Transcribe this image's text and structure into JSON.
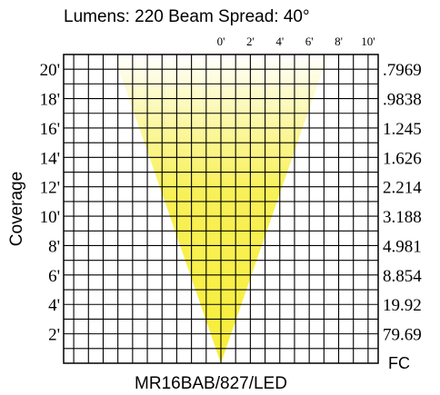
{
  "chart_data": {
    "type": "area",
    "title": "Lumens: 220  Beam Spread: 40°",
    "xlabel": "MR16BAB/827/LED",
    "ylabel": "Coverage",
    "fc_label": "FC",
    "top_ticks": [
      "0'",
      "2'",
      "4'",
      "6'",
      "8'",
      "10'"
    ],
    "y_ticks": [
      "20'",
      "18'",
      "16'",
      "14'",
      "12'",
      "10'",
      "8'",
      "6'",
      "4'",
      "2'"
    ],
    "y_values": [
      20,
      18,
      16,
      14,
      12,
      10,
      8,
      6,
      4,
      2
    ],
    "fc_values": [
      ".7969",
      ".9838",
      "1.245",
      "1.626",
      "2.214",
      "3.188",
      "4.981",
      "8.854",
      "19.92",
      "79.69"
    ],
    "beam_spread_deg": 40,
    "lumens": 220,
    "x_range_ft": [
      -10,
      10
    ],
    "y_range_ft": [
      0,
      21
    ],
    "beam_color": "#f7ee3a",
    "beam_fade_color": "#ffffff",
    "grid": true
  }
}
